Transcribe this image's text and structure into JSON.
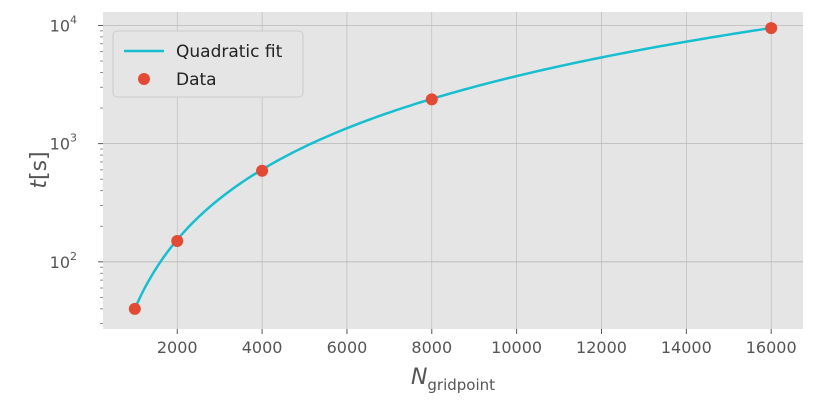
{
  "chart_data": {
    "type": "scatter",
    "xlabel": "N",
    "xlabel_sub": "gridpoint",
    "ylabel": "t[s]",
    "yscale": "log",
    "xlim": [
      250,
      16750
    ],
    "ylim": [
      27,
      13000
    ],
    "xticks": [
      2000,
      4000,
      6000,
      8000,
      10000,
      12000,
      14000,
      16000
    ],
    "xtick_labels": [
      "2000",
      "4000",
      "6000",
      "8000",
      "10000",
      "12000",
      "14000",
      "16000"
    ],
    "yticks": [
      {
        "value": 100,
        "base": "10",
        "exp": "2"
      },
      {
        "value": 1000,
        "base": "10",
        "exp": "3"
      },
      {
        "value": 10000,
        "base": "10",
        "exp": "4"
      }
    ],
    "grid": true,
    "legend_position": "top-left",
    "series": [
      {
        "name": "Quadratic fit",
        "kind": "line",
        "color": "#17becf",
        "coeffs": {
          "a": 3.7e-05,
          "b": 0.003,
          "c": 0
        }
      },
      {
        "name": "Data",
        "kind": "scatter",
        "color": "#e24a33",
        "x": [
          1000,
          2000,
          4000,
          8000,
          16000
        ],
        "y": [
          40,
          150,
          590,
          2370,
          9500
        ]
      }
    ]
  }
}
